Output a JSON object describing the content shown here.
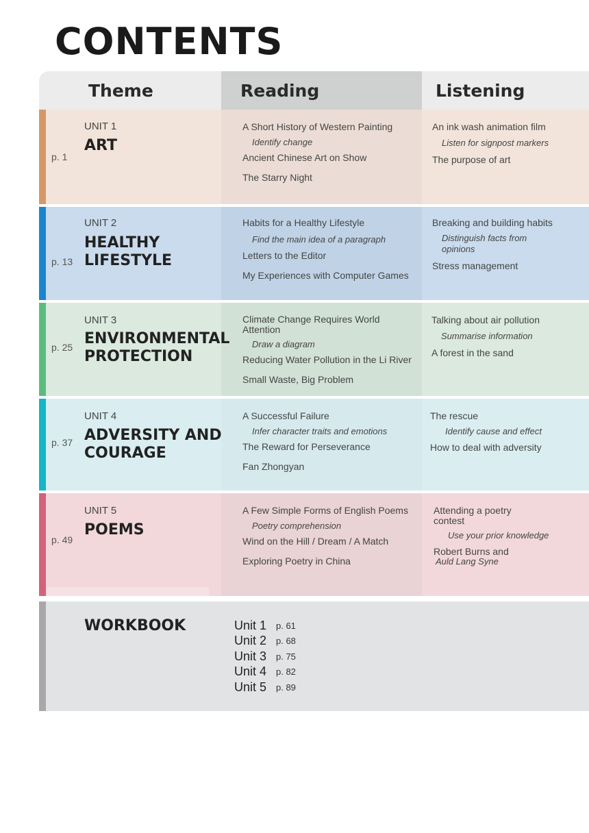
{
  "title": "CONTENTS",
  "headers": {
    "theme": "Theme",
    "reading": "Reading",
    "listening": "Listening"
  },
  "units": [
    {
      "page": "p. 1",
      "label": "UNIT 1",
      "name": [
        "ART"
      ],
      "reading": {
        "text1": "A Short History of Western Painting",
        "skill": "Identify change",
        "text2": "Ancient Chinese Art on Show",
        "text3": "The Starry Night"
      },
      "listening": {
        "text1": "An ink wash animation film",
        "skill": "Listen for signpost markers",
        "text2": "The purpose of art"
      }
    },
    {
      "page": "p. 13",
      "label": "UNIT 2",
      "name": [
        "HEALTHY",
        "LIFESTYLE"
      ],
      "reading": {
        "text1": "Habits for a Healthy Lifestyle",
        "skill": "Find the main idea of a paragraph",
        "text2": "Letters to the Editor",
        "text3": "My Experiences with Computer Games"
      },
      "listening": {
        "text1": "Breaking and building habits",
        "skill": [
          "Distinguish facts from",
          "opinions"
        ],
        "text2": "Stress management"
      }
    },
    {
      "page": "p. 25",
      "label": "UNIT 3",
      "name": [
        "ENVIRONMENTAL",
        "PROTECTION"
      ],
      "reading": {
        "text1": [
          "Climate Change Requires World",
          "Attention"
        ],
        "skill": "Draw a diagram",
        "text2": "Reducing Water Pollution in the Li River",
        "text3": "Small Waste, Big Problem"
      },
      "listening": {
        "text1": "Talking about air pollution",
        "skill": "Summarise information",
        "text2": "A forest in the sand"
      }
    },
    {
      "page": "p. 37",
      "label": "UNIT 4",
      "name": [
        "ADVERSITY AND",
        "COURAGE"
      ],
      "reading": {
        "text1": "A Successful Failure",
        "skill": "Infer character traits and emotions",
        "text2": "The Reward for Perseverance",
        "text3": "Fan Zhongyan"
      },
      "listening": {
        "text1": "The rescue",
        "skill": "Identify cause and effect",
        "text2": "How to deal with adversity"
      }
    },
    {
      "page": "p. 49",
      "label": "UNIT 5",
      "name": [
        "POEMS"
      ],
      "reading": {
        "text1": "A Few Simple Forms of English Poems",
        "skill": "Poetry comprehension",
        "text2": "Wind on the Hill / Dream / A Match",
        "text3": "Exploring Poetry in China"
      },
      "listening": {
        "text1": [
          "Attending a poetry",
          "contest"
        ],
        "skill": "Use your prior knowledge",
        "text2": "Robert Burns and",
        "text2_italic": "Auld Lang Syne"
      }
    }
  ],
  "workbook": {
    "title": "WORKBOOK",
    "entries": [
      {
        "unit": "Unit 1",
        "page": "p. 61"
      },
      {
        "unit": "Unit 2",
        "page": "p. 68"
      },
      {
        "unit": "Unit 3",
        "page": "p. 75"
      },
      {
        "unit": "Unit 4",
        "page": "p. 82"
      },
      {
        "unit": "Unit 5",
        "page": "p. 89"
      }
    ]
  },
  "colors": {
    "unit1": {
      "band": "#f2e4da",
      "mid": "#ebddd5",
      "bar": "#d6986a"
    },
    "unit2": {
      "band": "#c9dbec",
      "mid": "#c0d3e6",
      "bar": "#1a85cf"
    },
    "unit3": {
      "band": "#dbe9df",
      "mid": "#d1e1d6",
      "bar": "#5cbc7f"
    },
    "unit4": {
      "band": "#daeef1",
      "mid": "#d6eaee",
      "bar": "#14b6c7"
    },
    "unit5": {
      "band": "#f2d8db",
      "mid": "#e9d3d4",
      "bar": "#d2637a"
    },
    "workbook": {
      "band": "#e2e3e5",
      "bar": "#a8a8aa"
    }
  }
}
